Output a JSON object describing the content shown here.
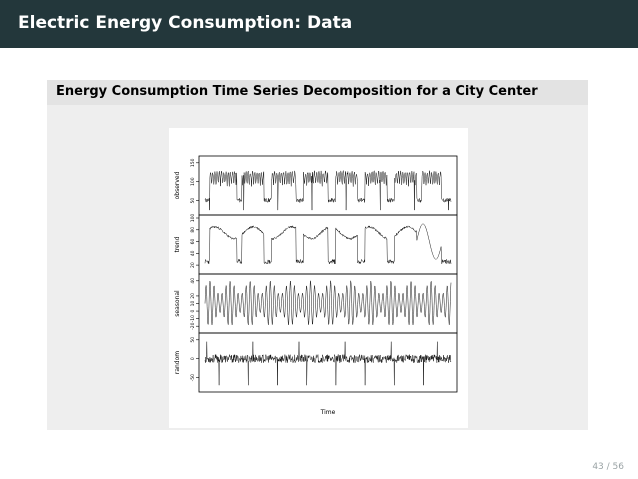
{
  "slide": {
    "title": "Electric Energy Consumption: Data",
    "page_number": "43 / 56"
  },
  "block": {
    "title": "Energy Consumption Time Series Decomposition for a City Center"
  },
  "chart_data": {
    "type": "line",
    "xlabel": "Time",
    "panels": [
      {
        "name": "observed",
        "ylabel": "observed",
        "ticks": [
          "50",
          "100",
          "150"
        ],
        "ylim": [
          20,
          160
        ]
      },
      {
        "name": "trend",
        "ylabel": "trend",
        "ticks": [
          "20",
          "40",
          "60",
          "80",
          "100"
        ],
        "ylim": [
          10,
          100
        ]
      },
      {
        "name": "seasonal",
        "ylabel": "seasonal",
        "ticks": [
          "-20",
          "-10",
          "0",
          "10",
          "20",
          "40"
        ],
        "ylim": [
          -25,
          45
        ]
      },
      {
        "name": "random",
        "ylabel": "random",
        "ticks": [
          "-50",
          "0",
          "50"
        ],
        "ylim": [
          -80,
          60
        ]
      }
    ]
  },
  "colors": {
    "header_bg": "#23373b",
    "block_bg": "#eeeeee",
    "block_head_bg": "#e3e3e3"
  }
}
